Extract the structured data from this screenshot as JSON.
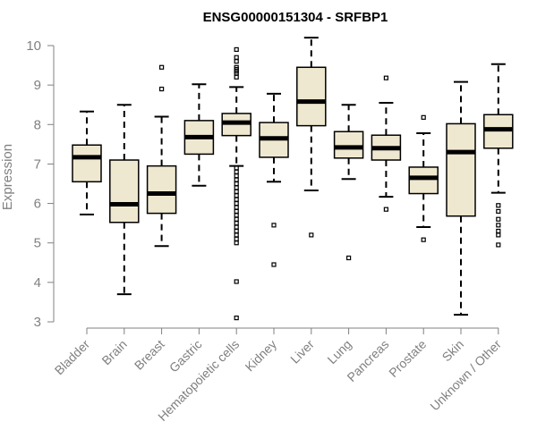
{
  "chart_data": {
    "type": "boxplot",
    "title": "ENSG00000151304 - SRFBP1",
    "xlabel": "",
    "ylabel": "Expression",
    "ylim": [
      3,
      10.2
    ],
    "yticks": [
      3,
      4,
      5,
      6,
      7,
      8,
      9,
      10
    ],
    "box_color": "#EFE8D0",
    "categories": [
      "Bladder",
      "Brain",
      "Breast",
      "Gastric",
      "Hematopoietic cells",
      "Kidney",
      "Liver",
      "Lung",
      "Pancreas",
      "Prostate",
      "Skin",
      "Unknown / Other"
    ],
    "boxes": [
      {
        "whisker_low": 5.72,
        "q1": 6.55,
        "median": 7.17,
        "q3": 7.48,
        "whisker_high": 8.33,
        "outliers": []
      },
      {
        "whisker_low": 3.7,
        "q1": 5.52,
        "median": 5.98,
        "q3": 7.1,
        "whisker_high": 8.5,
        "outliers": []
      },
      {
        "whisker_low": 4.92,
        "q1": 5.75,
        "median": 6.25,
        "q3": 6.95,
        "whisker_high": 8.2,
        "outliers": [
          8.9,
          9.45
        ]
      },
      {
        "whisker_low": 6.45,
        "q1": 7.25,
        "median": 7.68,
        "q3": 8.1,
        "whisker_high": 9.02,
        "outliers": []
      },
      {
        "whisker_low": 6.95,
        "q1": 7.72,
        "median": 8.05,
        "q3": 8.28,
        "whisker_high": 8.95,
        "outliers": [
          9.2,
          9.3,
          9.35,
          9.4,
          9.45,
          9.6,
          9.7,
          9.9,
          6.9,
          6.8,
          6.7,
          6.6,
          6.5,
          6.4,
          6.3,
          6.2,
          6.1,
          6.0,
          5.9,
          5.8,
          5.7,
          5.6,
          5.5,
          5.4,
          5.3,
          5.2,
          5.1,
          5.0,
          4.02,
          3.1
        ]
      },
      {
        "whisker_low": 6.55,
        "q1": 7.17,
        "median": 7.65,
        "q3": 8.05,
        "whisker_high": 8.78,
        "outliers": [
          5.45,
          4.45
        ]
      },
      {
        "whisker_low": 6.33,
        "q1": 7.97,
        "median": 8.58,
        "q3": 9.45,
        "whisker_high": 10.2,
        "outliers": [
          5.2
        ]
      },
      {
        "whisker_low": 6.62,
        "q1": 7.15,
        "median": 7.42,
        "q3": 7.82,
        "whisker_high": 8.5,
        "outliers": [
          4.62
        ]
      },
      {
        "whisker_low": 6.17,
        "q1": 7.1,
        "median": 7.4,
        "q3": 7.73,
        "whisker_high": 8.55,
        "outliers": [
          5.85,
          9.18
        ]
      },
      {
        "whisker_low": 5.4,
        "q1": 6.25,
        "median": 6.65,
        "q3": 6.92,
        "whisker_high": 7.78,
        "outliers": [
          5.08,
          8.18
        ]
      },
      {
        "whisker_low": 3.18,
        "q1": 5.68,
        "median": 7.3,
        "q3": 8.02,
        "whisker_high": 9.08,
        "outliers": []
      },
      {
        "whisker_low": 6.27,
        "q1": 7.4,
        "median": 7.88,
        "q3": 8.25,
        "whisker_high": 9.53,
        "outliers": [
          5.95,
          5.8,
          5.6,
          5.45,
          5.3,
          5.2,
          4.95
        ]
      }
    ]
  }
}
